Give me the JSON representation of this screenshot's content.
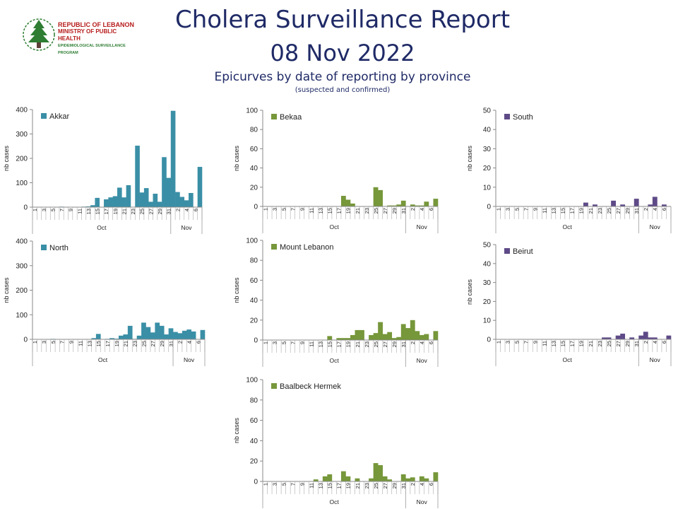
{
  "header": {
    "logo_line1": "REPUBLIC OF LEBANON",
    "logo_line2": "MINISTRY OF PUBLIC HEALTH",
    "logo_line3": "EPIDEMIOLOGICAL SURVEILLANCE PROGRAM",
    "title": "Cholera Surveillance Report",
    "date": "08 Nov 2022",
    "subtitle": "Epicurves by date of reporting by province",
    "note": "(suspected and confirmed)"
  },
  "colors": {
    "teal": "#3a8fa6",
    "green": "#76973a",
    "purple": "#5e4a87",
    "title": "#1f2a66"
  },
  "chart_data": [
    {
      "type": "bar",
      "title": "Akkar",
      "color": "#3a8fa6",
      "ylabel": "nb cases",
      "ylim": [
        0,
        400
      ],
      "yticks": [
        0,
        100,
        200,
        300,
        400
      ],
      "categories": [
        "1",
        "2",
        "3",
        "4",
        "5",
        "6",
        "7",
        "8",
        "9",
        "10",
        "11",
        "12",
        "13",
        "14",
        "15",
        "16",
        "17",
        "18",
        "19",
        "20",
        "21",
        "22",
        "23",
        "24",
        "25",
        "26",
        "27",
        "28",
        "29",
        "30",
        "31",
        "1",
        "2",
        "3",
        "4",
        "5",
        "6",
        "7"
      ],
      "tick_labels": [
        "1",
        "3",
        "5",
        "7",
        "9",
        "11",
        "13",
        "15",
        "17",
        "19",
        "21",
        "23",
        "25",
        "27",
        "29",
        "31",
        "2",
        "4",
        "6"
      ],
      "months": [
        "Oct",
        "Nov"
      ],
      "values": [
        0,
        0,
        0,
        0,
        0,
        0,
        2,
        0,
        0,
        0,
        1,
        2,
        3,
        8,
        38,
        0,
        32,
        40,
        45,
        80,
        40,
        90,
        0,
        252,
        60,
        78,
        22,
        55,
        22,
        205,
        120,
        395,
        62,
        42,
        28,
        58,
        0,
        165
      ]
    },
    {
      "type": "bar",
      "title": "Bekaa",
      "color": "#76973a",
      "ylabel": "nb cases",
      "ylim": [
        0,
        100
      ],
      "yticks": [
        0,
        20,
        40,
        60,
        80,
        100
      ],
      "categories": [
        "1",
        "2",
        "3",
        "4",
        "5",
        "6",
        "7",
        "8",
        "9",
        "10",
        "11",
        "12",
        "13",
        "14",
        "15",
        "16",
        "17",
        "18",
        "19",
        "20",
        "21",
        "22",
        "23",
        "24",
        "25",
        "26",
        "27",
        "28",
        "29",
        "30",
        "31",
        "1",
        "2",
        "3",
        "4",
        "5",
        "6",
        "7"
      ],
      "tick_labels": [
        "1",
        "3",
        "5",
        "7",
        "9",
        "11",
        "13",
        "15",
        "17",
        "19",
        "21",
        "23",
        "25",
        "27",
        "29",
        "31",
        "2",
        "4",
        "6"
      ],
      "months": [
        "Oct",
        "Nov"
      ],
      "values": [
        0,
        0,
        0,
        0,
        0,
        0,
        0,
        0,
        0,
        0,
        0,
        0,
        0,
        0,
        0,
        0,
        0,
        11,
        7,
        3,
        0,
        0,
        0,
        0,
        20,
        17,
        0,
        1,
        1,
        2,
        6,
        0,
        2,
        1,
        1,
        5,
        0,
        8
      ]
    },
    {
      "type": "bar",
      "title": "South",
      "color": "#5e4a87",
      "ylabel": "nb cases",
      "ylim": [
        0,
        50
      ],
      "yticks": [
        0,
        10,
        20,
        30,
        40,
        50
      ],
      "categories": [
        "1",
        "2",
        "3",
        "4",
        "5",
        "6",
        "7",
        "8",
        "9",
        "10",
        "11",
        "12",
        "13",
        "14",
        "15",
        "16",
        "17",
        "18",
        "19",
        "20",
        "21",
        "22",
        "23",
        "24",
        "25",
        "26",
        "27",
        "28",
        "29",
        "30",
        "31",
        "1",
        "2",
        "3",
        "4",
        "5",
        "6",
        "7"
      ],
      "tick_labels": [
        "1",
        "3",
        "5",
        "7",
        "9",
        "11",
        "13",
        "15",
        "17",
        "19",
        "21",
        "23",
        "25",
        "27",
        "29",
        "31",
        "2",
        "4",
        "6"
      ],
      "months": [
        "Oct",
        "Nov"
      ],
      "values": [
        0,
        0,
        0,
        0,
        0,
        0,
        0,
        0,
        0,
        0,
        0,
        0,
        0,
        0,
        0,
        0,
        0,
        0,
        0,
        2,
        0,
        1,
        0,
        0,
        0,
        3,
        0,
        1,
        0,
        0,
        4,
        0,
        0,
        1,
        5,
        0,
        1,
        0
      ]
    },
    {
      "type": "bar",
      "title": "North",
      "color": "#3a8fa6",
      "ylabel": "nb cases",
      "ylim": [
        0,
        400
      ],
      "yticks": [
        0,
        100,
        200,
        300,
        400
      ],
      "categories": [
        "1",
        "2",
        "3",
        "4",
        "5",
        "6",
        "7",
        "8",
        "9",
        "10",
        "11",
        "12",
        "13",
        "14",
        "15",
        "16",
        "17",
        "18",
        "19",
        "20",
        "21",
        "22",
        "23",
        "24",
        "25",
        "26",
        "27",
        "28",
        "29",
        "30",
        "31",
        "1",
        "2",
        "3",
        "4",
        "5",
        "6",
        "7"
      ],
      "tick_labels": [
        "1",
        "3",
        "5",
        "7",
        "9",
        "11",
        "13",
        "15",
        "17",
        "19",
        "21",
        "23",
        "25",
        "27",
        "29",
        "31",
        "2",
        "4",
        "6"
      ],
      "months": [
        "Oct",
        "Nov"
      ],
      "values": [
        0,
        0,
        0,
        0,
        2,
        0,
        0,
        0,
        0,
        0,
        0,
        0,
        0,
        5,
        22,
        0,
        2,
        5,
        3,
        15,
        20,
        55,
        2,
        15,
        68,
        50,
        28,
        68,
        55,
        20,
        45,
        30,
        25,
        35,
        40,
        32,
        0,
        38
      ]
    },
    {
      "type": "bar",
      "title": "Mount Lebanon",
      "color": "#76973a",
      "ylabel": "nb cases",
      "ylim": [
        0,
        100
      ],
      "yticks": [
        0,
        20,
        40,
        60,
        80,
        100
      ],
      "categories": [
        "1",
        "2",
        "3",
        "4",
        "5",
        "6",
        "7",
        "8",
        "9",
        "10",
        "11",
        "12",
        "13",
        "14",
        "15",
        "16",
        "17",
        "18",
        "19",
        "20",
        "21",
        "22",
        "23",
        "24",
        "25",
        "26",
        "27",
        "28",
        "29",
        "30",
        "31",
        "1",
        "2",
        "3",
        "4",
        "5",
        "6",
        "7"
      ],
      "tick_labels": [
        "1",
        "3",
        "5",
        "7",
        "9",
        "11",
        "13",
        "15",
        "17",
        "19",
        "21",
        "23",
        "25",
        "27",
        "29",
        "31",
        "2",
        "4",
        "6"
      ],
      "months": [
        "Oct",
        "Nov"
      ],
      "values": [
        0,
        0,
        0,
        0,
        0,
        0,
        0,
        0,
        0,
        0,
        0,
        0,
        0,
        0,
        4,
        0,
        2,
        2,
        2,
        5,
        10,
        10,
        0,
        5,
        7,
        18,
        6,
        8,
        2,
        3,
        16,
        12,
        20,
        9,
        5,
        6,
        0,
        9
      ]
    },
    {
      "type": "bar",
      "title": "Beirut",
      "color": "#5e4a87",
      "ylabel": "nb cases",
      "ylim": [
        0,
        50
      ],
      "yticks": [
        0,
        10,
        20,
        30,
        40,
        50
      ],
      "categories": [
        "1",
        "2",
        "3",
        "4",
        "5",
        "6",
        "7",
        "8",
        "9",
        "10",
        "11",
        "12",
        "13",
        "14",
        "15",
        "16",
        "17",
        "18",
        "19",
        "20",
        "21",
        "22",
        "23",
        "24",
        "25",
        "26",
        "27",
        "28",
        "29",
        "30",
        "31",
        "1",
        "2",
        "3",
        "4",
        "5",
        "6",
        "7"
      ],
      "tick_labels": [
        "1",
        "3",
        "5",
        "7",
        "9",
        "11",
        "13",
        "15",
        "17",
        "19",
        "21",
        "23",
        "25",
        "27",
        "29",
        "31",
        "2",
        "4",
        "6"
      ],
      "months": [
        "Oct",
        "Nov"
      ],
      "values": [
        0,
        0,
        0,
        0,
        0,
        0,
        0,
        0,
        0,
        0,
        0,
        0,
        0,
        0,
        0,
        0,
        0,
        0,
        0,
        0,
        0,
        0,
        0,
        1,
        1,
        0,
        2,
        3,
        0,
        1,
        0,
        2,
        4,
        1,
        1,
        0,
        0,
        2
      ]
    },
    {
      "type": "bar",
      "title": "Baalbeck Hermek",
      "color": "#76973a",
      "ylabel": "nb cases",
      "ylim": [
        0,
        100
      ],
      "yticks": [
        0,
        20,
        40,
        60,
        80,
        100
      ],
      "categories": [
        "1",
        "2",
        "3",
        "4",
        "5",
        "6",
        "7",
        "8",
        "9",
        "10",
        "11",
        "12",
        "13",
        "14",
        "15",
        "16",
        "17",
        "18",
        "19",
        "20",
        "21",
        "22",
        "23",
        "24",
        "25",
        "26",
        "27",
        "28",
        "29",
        "30",
        "31",
        "1",
        "2",
        "3",
        "4",
        "5",
        "6",
        "7"
      ],
      "tick_labels": [
        "1",
        "3",
        "5",
        "7",
        "9",
        "11",
        "13",
        "15",
        "17",
        "19",
        "21",
        "23",
        "25",
        "27",
        "29",
        "31",
        "2",
        "4",
        "6"
      ],
      "months": [
        "Oct",
        "Nov"
      ],
      "values": [
        0,
        0,
        0,
        0,
        0,
        0,
        0,
        0,
        0,
        0,
        0,
        2,
        0,
        5,
        7,
        0,
        0,
        10,
        5,
        0,
        3,
        0,
        0,
        3,
        18,
        16,
        5,
        2,
        0,
        0,
        7,
        3,
        4,
        0,
        5,
        3,
        0,
        9
      ]
    }
  ]
}
